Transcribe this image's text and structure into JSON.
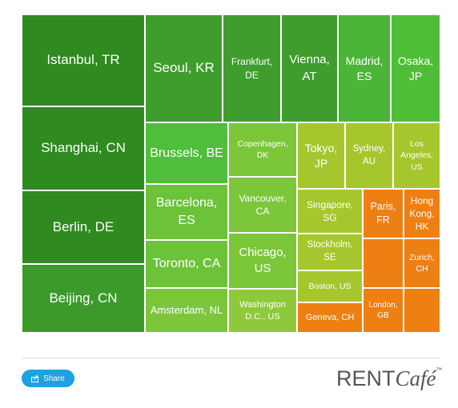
{
  "tiles": [
    {
      "label": "Istanbul, TR",
      "color": "#2f8a1f"
    },
    {
      "label": "Shanghai, CN",
      "color": "#2f8a1f"
    },
    {
      "label": "Berlin, DE",
      "color": "#2f8a1f"
    },
    {
      "label": "Beijing, CN",
      "color": "#3b9a2a"
    },
    {
      "label": "Seoul, KR",
      "color": "#3f9d2d"
    },
    {
      "label": "Frankfurt, DE",
      "color": "#3f9d2d"
    },
    {
      "label": "Vienna, AT",
      "color": "#3f9d2d"
    },
    {
      "label": "Madrid, ES",
      "color": "#4bb537"
    },
    {
      "label": "Osaka, JP",
      "color": "#4fbe37"
    },
    {
      "label": "Brussels, BE",
      "color": "#4fbe3b"
    },
    {
      "label": "Barcelona, ES",
      "color": "#6cc33a"
    },
    {
      "label": "Toronto, CA",
      "color": "#6cc33a"
    },
    {
      "label": "Amsterdam, NL",
      "color": "#7cc63a"
    },
    {
      "label": "Copenhagen, DK",
      "color": "#7cc63a"
    },
    {
      "label": "Vancouver, CA",
      "color": "#7cc63a"
    },
    {
      "label": "Chicago, US",
      "color": "#7cc63a"
    },
    {
      "label": "Washington D.C., US",
      "color": "#8dc93a"
    },
    {
      "label": "Tokyo, JP",
      "color": "#a5c72d"
    },
    {
      "label": "Sydney, AU",
      "color": "#a5c72d"
    },
    {
      "label": "Los Angeles, US",
      "color": "#a5c72d"
    },
    {
      "label": "Singapore, SG",
      "color": "#a5c72d"
    },
    {
      "label": "Stockholm, SE",
      "color": "#a5c72d"
    },
    {
      "label": "Boston, US",
      "color": "#a5c72d"
    },
    {
      "label": "Geneva, CH",
      "color": "#ee7f12"
    },
    {
      "label": "Paris, FR",
      "color": "#ee7f12"
    },
    {
      "label": "Hong Kong, HK",
      "color": "#ee7f12"
    },
    {
      "label": "Zurich, CH",
      "color": "#ee7f12"
    },
    {
      "label": "London, GB",
      "color": "#ee7f12"
    }
  ],
  "share": "Share",
  "logo": {
    "rent": "RENT",
    "cafe": "Café",
    "tm": "™"
  }
}
